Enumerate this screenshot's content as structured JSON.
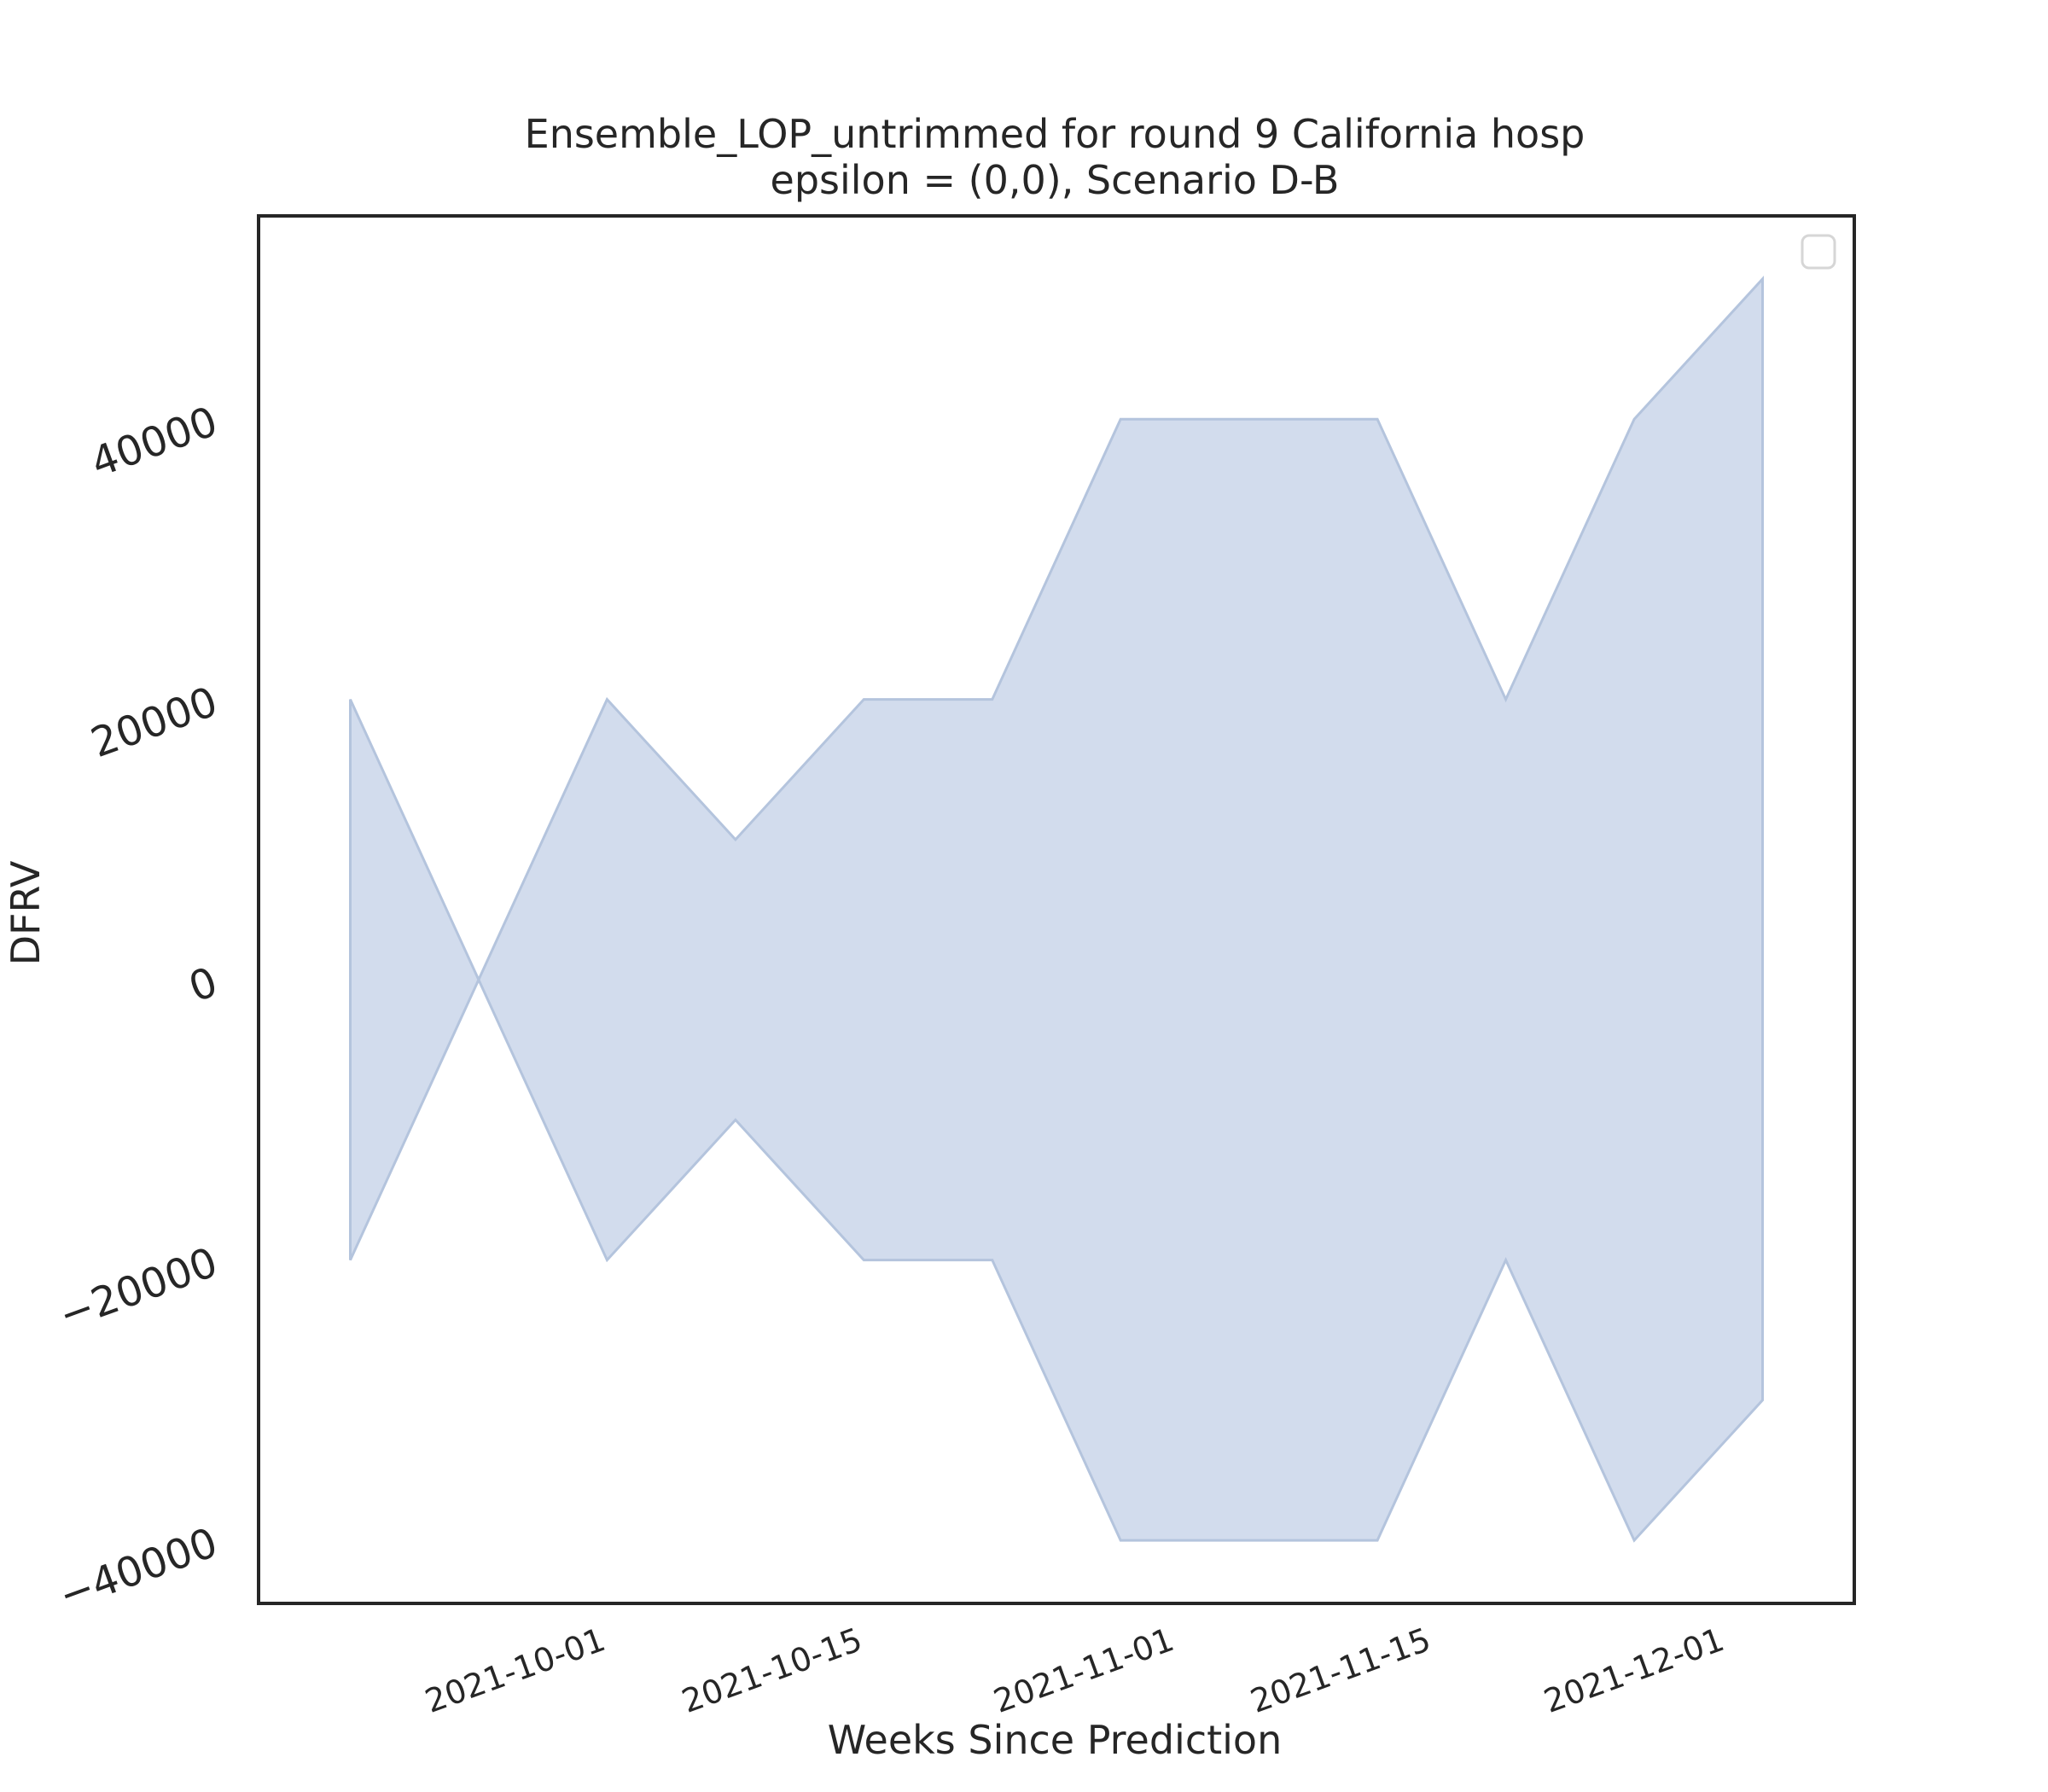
{
  "chart_data": {
    "type": "area",
    "title_line1": "Ensemble_LOP_untrimmed for round 9 California hosp",
    "title_line2": "epsilon = (0,0), Scenario D-B",
    "xlabel": "Weeks Since Prediction",
    "ylabel": "DFRV",
    "x": [
      "2021-09-18",
      "2021-09-25",
      "2021-10-02",
      "2021-10-09",
      "2021-10-16",
      "2021-10-23",
      "2021-10-30",
      "2021-11-06",
      "2021-11-13",
      "2021-11-20",
      "2021-11-27",
      "2021-12-04"
    ],
    "series": [
      {
        "lower": [
          -20000,
          0,
          -20000,
          -10000,
          -20000,
          -20000,
          -40000,
          -40000,
          -40000,
          -20000,
          -40000,
          -30000
        ],
        "upper": [
          20000,
          0,
          20000,
          10000,
          20000,
          20000,
          40000,
          40000,
          40000,
          20000,
          40000,
          50000
        ],
        "color": "#b8c7e0"
      }
    ],
    "x_ticks": [
      "2021-10-01",
      "2021-10-15",
      "2021-11-01",
      "2021-11-15",
      "2021-12-01"
    ],
    "y_ticks": [
      -40000,
      -20000,
      0,
      20000,
      40000
    ],
    "y_tick_labels": [
      "−40000",
      "−20000",
      "0",
      "20000",
      "40000"
    ],
    "xlim": [
      "2021-09-13",
      "2021-12-09"
    ],
    "ylim": [
      -44500,
      54500
    ],
    "grid": false,
    "legend": "top-right",
    "fill_color": "#c7d3e8",
    "line_color": "#b4c4dd"
  }
}
